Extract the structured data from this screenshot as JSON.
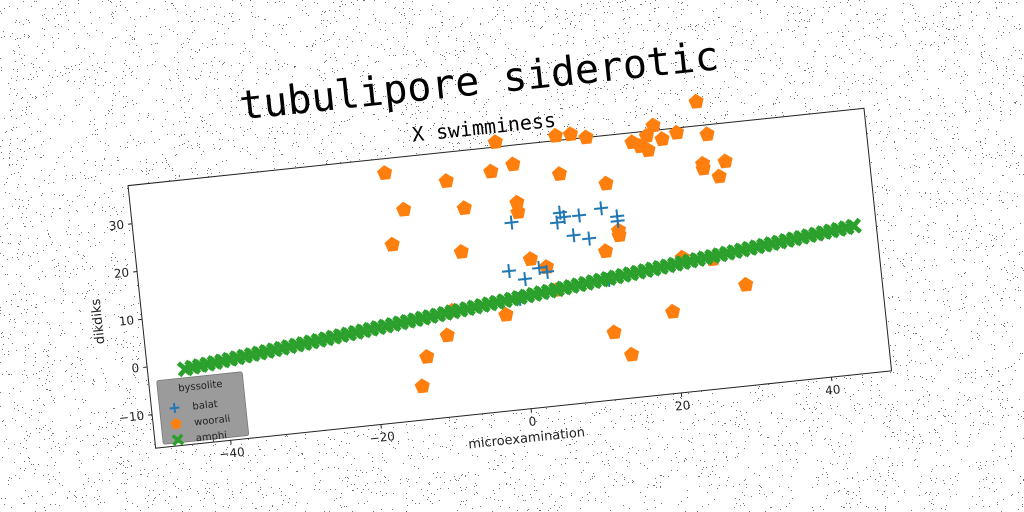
{
  "chart_data": {
    "type": "scatter",
    "title": "tubulipore siderotic",
    "subtitle": "X swimminess",
    "xlabel": "microexamination",
    "ylabel": "dikdiks",
    "xlim": [
      -50,
      48
    ],
    "ylim": [
      -17,
      38
    ],
    "xticks": [
      -40,
      -20,
      0,
      20,
      40
    ],
    "yticks": [
      -10,
      0,
      10,
      20,
      30
    ],
    "grid": false,
    "legend": {
      "title": "byssolite",
      "position": "lower-left"
    },
    "series": [
      {
        "name": "balat",
        "marker": "plus",
        "color": "#1f77b4",
        "points": [
          [
            -1,
            12
          ],
          [
            0,
            6
          ],
          [
            0,
            22
          ],
          [
            1,
            10
          ],
          [
            3,
            12
          ],
          [
            4,
            11
          ],
          [
            6,
            21
          ],
          [
            6.5,
            23
          ],
          [
            7,
            22
          ],
          [
            8,
            18
          ],
          [
            9,
            22
          ],
          [
            10,
            17
          ],
          [
            12,
            23
          ],
          [
            12,
            8
          ],
          [
            14,
            21
          ],
          [
            14,
            20
          ]
        ]
      },
      {
        "name": "woorali",
        "marker": "pentagon",
        "color": "#ff7f0e",
        "points": [
          [
            -16,
            35
          ],
          [
            -16,
            20
          ],
          [
            -14,
            27
          ],
          [
            -14,
            -10
          ],
          [
            -13,
            -4
          ],
          [
            -10,
            0
          ],
          [
            -9,
            5
          ],
          [
            -8,
            32
          ],
          [
            -7,
            17
          ],
          [
            -6,
            26
          ],
          [
            -2,
            33
          ],
          [
            -2,
            3
          ],
          [
            -1,
            39
          ],
          [
            1,
            34
          ],
          [
            1,
            24
          ],
          [
            1,
            26
          ],
          [
            2,
            14
          ],
          [
            4,
            12
          ],
          [
            5,
            7
          ],
          [
            7,
            39
          ],
          [
            7,
            31
          ],
          [
            9,
            39
          ],
          [
            11,
            38
          ],
          [
            12,
            -3
          ],
          [
            12,
            14
          ],
          [
            13,
            28
          ],
          [
            14,
            -8
          ],
          [
            14,
            18
          ],
          [
            14,
            17
          ],
          [
            17,
            36
          ],
          [
            18,
            35
          ],
          [
            19,
            34
          ],
          [
            19,
            37
          ],
          [
            20,
            0
          ],
          [
            20,
            39
          ],
          [
            21,
            36
          ],
          [
            22,
            11
          ],
          [
            23,
            37
          ],
          [
            26,
            43
          ],
          [
            26,
            30
          ],
          [
            26,
            29
          ],
          [
            26,
            10
          ],
          [
            27,
            36
          ],
          [
            28,
            27
          ],
          [
            29,
            30
          ],
          [
            30,
            4
          ]
        ]
      },
      {
        "name": "amphi",
        "marker": "x-filled",
        "color": "#2ca02c",
        "points": [
          [
            -45,
            -1.2
          ],
          [
            -44,
            -1.03
          ],
          [
            -43,
            -0.86
          ],
          [
            -42,
            -0.7
          ],
          [
            -41,
            -0.54
          ],
          [
            -40,
            -0.37
          ],
          [
            -39,
            -0.2
          ],
          [
            -38,
            -0.04
          ],
          [
            -37,
            0.13
          ],
          [
            -36,
            0.3
          ],
          [
            -35,
            0.46
          ],
          [
            -34,
            0.63
          ],
          [
            -33,
            0.8
          ],
          [
            -32,
            0.96
          ],
          [
            -31,
            1.13
          ],
          [
            -30,
            1.3
          ],
          [
            -29,
            1.46
          ],
          [
            -28,
            1.63
          ],
          [
            -27,
            1.8
          ],
          [
            -26,
            1.96
          ],
          [
            -25,
            2.13
          ],
          [
            -24,
            2.3
          ],
          [
            -23,
            2.46
          ],
          [
            -22,
            2.63
          ],
          [
            -21,
            2.8
          ],
          [
            -20,
            2.96
          ],
          [
            -19,
            3.13
          ],
          [
            -18,
            3.3
          ],
          [
            -17,
            3.46
          ],
          [
            -16,
            3.63
          ],
          [
            -15,
            3.8
          ],
          [
            -14,
            3.96
          ],
          [
            -13,
            4.13
          ],
          [
            -12,
            4.3
          ],
          [
            -11,
            4.46
          ],
          [
            -10,
            4.63
          ],
          [
            -9,
            4.8
          ],
          [
            -8,
            4.96
          ],
          [
            -7,
            5.13
          ],
          [
            -6,
            5.3
          ],
          [
            -5,
            5.46
          ],
          [
            -4,
            5.63
          ],
          [
            -3,
            5.8
          ],
          [
            -2,
            5.96
          ],
          [
            -1,
            6.13
          ],
          [
            0,
            6.3
          ],
          [
            1,
            6.46
          ],
          [
            2,
            6.63
          ],
          [
            3,
            6.8
          ],
          [
            4,
            6.96
          ],
          [
            5,
            7.13
          ],
          [
            6,
            7.3
          ],
          [
            7,
            7.46
          ],
          [
            8,
            7.63
          ],
          [
            9,
            7.8
          ],
          [
            10,
            7.96
          ],
          [
            11,
            8.13
          ],
          [
            12,
            8.3
          ],
          [
            13,
            8.46
          ],
          [
            14,
            8.63
          ],
          [
            15,
            8.8
          ],
          [
            16,
            8.96
          ],
          [
            17,
            9.13
          ],
          [
            18,
            9.3
          ],
          [
            19,
            9.46
          ],
          [
            20,
            9.63
          ],
          [
            21,
            9.8
          ],
          [
            22,
            9.96
          ],
          [
            23,
            10.13
          ],
          [
            24,
            10.3
          ],
          [
            25,
            10.46
          ],
          [
            26,
            10.63
          ],
          [
            27,
            10.8
          ],
          [
            28,
            10.96
          ],
          [
            29,
            11.13
          ],
          [
            30,
            11.3
          ],
          [
            31,
            11.46
          ],
          [
            32,
            11.63
          ],
          [
            33,
            11.8
          ],
          [
            34,
            11.96
          ],
          [
            35,
            12.13
          ],
          [
            36,
            12.3
          ],
          [
            37,
            12.46
          ],
          [
            38,
            12.63
          ],
          [
            39,
            12.8
          ],
          [
            40,
            12.96
          ],
          [
            41,
            13.13
          ],
          [
            42,
            13.3
          ],
          [
            43,
            13.46
          ],
          [
            44,
            13.63
          ],
          [
            45,
            13.8
          ]
        ]
      }
    ]
  }
}
